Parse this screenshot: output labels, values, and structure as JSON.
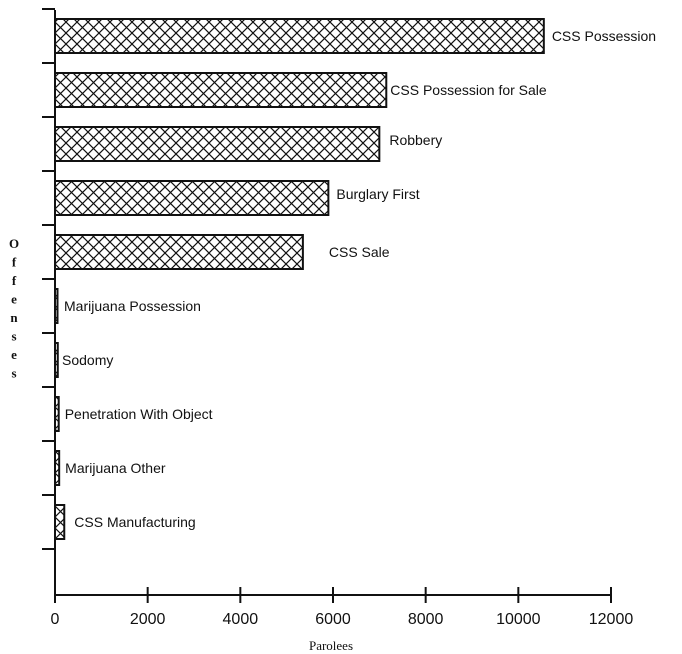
{
  "chart_data": {
    "type": "bar",
    "orientation": "horizontal",
    "categories": [
      "CSS Possession",
      "CSS Possession for Sale",
      "Robbery",
      "Burglary First",
      "CSS Sale",
      "Marijuana Possession",
      "Sodomy",
      "Penetration With Object",
      "Marijuana Other",
      "CSS Manufacturing"
    ],
    "values": [
      10550,
      7150,
      7000,
      5900,
      5350,
      20,
      60,
      80,
      90,
      200
    ],
    "xlabel": "Parolees",
    "ylabel": "Offenses",
    "xlim": [
      0,
      12000
    ],
    "xticks": [
      0,
      2000,
      4000,
      6000,
      8000,
      10000,
      12000
    ],
    "bar_pattern": "crosshatch",
    "grid": false
  }
}
